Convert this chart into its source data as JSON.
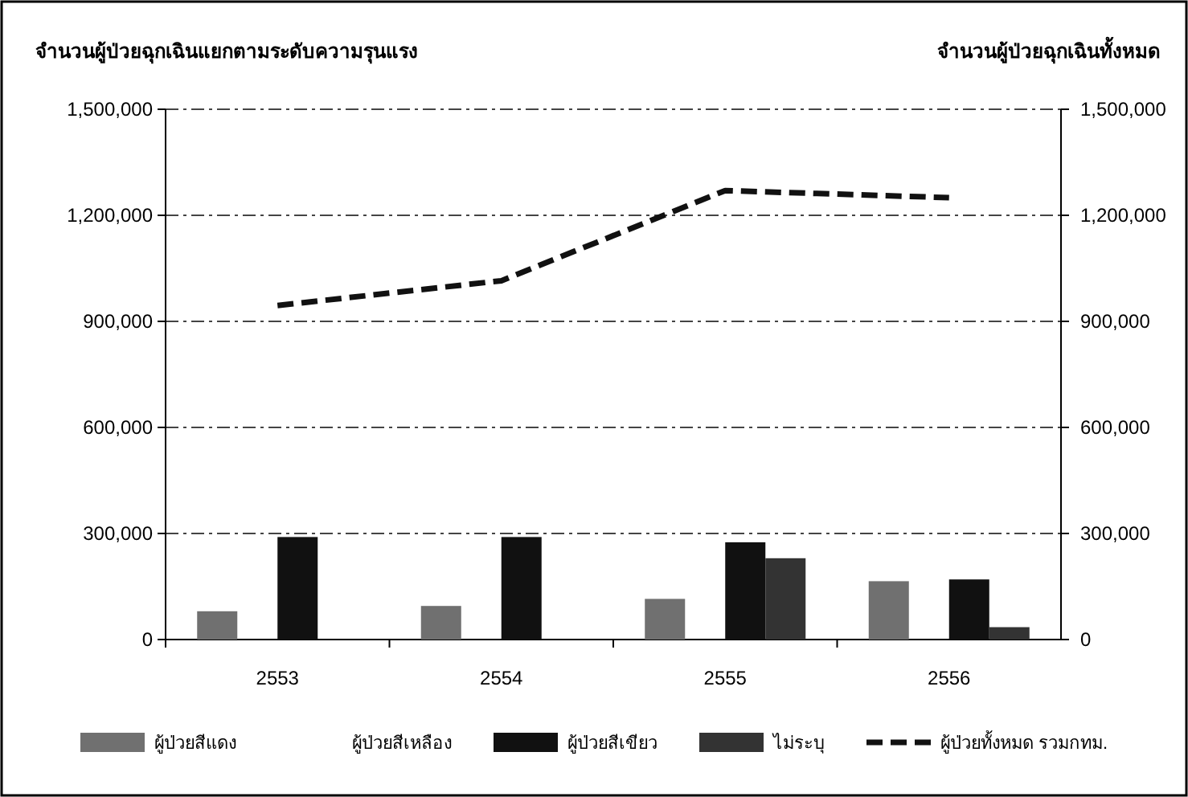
{
  "chart_data": {
    "type": "bar",
    "ylabel": "จำนวนผู้ป่วยฉุกเฉินแยกตามระดับความรุนแรง",
    "y2label": "จำนวนผู้ป่วยฉุกเฉินทั้งหมด",
    "categories": [
      "2553",
      "2554",
      "2555",
      "2556"
    ],
    "series": [
      {
        "name": "ผู้ป่วยสีแดง",
        "color": "#707070",
        "values": [
          80000,
          95000,
          115000,
          165000
        ]
      },
      {
        "name": "ผู้ป่วยสีเหลือง",
        "values": [
          null,
          null,
          null,
          null
        ]
      },
      {
        "name": "ผู้ป่วยสีเขียว",
        "color": "#111111",
        "values": [
          290000,
          290000,
          275000,
          170000
        ]
      },
      {
        "name": "ไม่ระบุ",
        "color": "#333333",
        "values": [
          null,
          null,
          230000,
          35000
        ]
      },
      {
        "name": "ผู้ป่วยทั้งหมด รวมกทม.",
        "type": "line",
        "color": "#111111",
        "line_style": "dashed",
        "values": [
          945000,
          1015000,
          1270000,
          1250000
        ]
      }
    ],
    "ylim": [
      0,
      1500000
    ],
    "yticks": [
      {
        "value": 0,
        "label": "0"
      },
      {
        "value": 300000,
        "label": "300,000"
      },
      {
        "value": 600000,
        "label": "600,000"
      },
      {
        "value": 900000,
        "label": "900,000"
      },
      {
        "value": 1200000,
        "label": "1,200,000"
      },
      {
        "value": 1500000,
        "label": "1,500,000"
      }
    ],
    "y2lim": [
      0,
      1500000
    ],
    "y2ticks": [
      {
        "value": 0,
        "label": "0"
      },
      {
        "value": 300000,
        "label": "300,000"
      },
      {
        "value": 600000,
        "label": "600,000"
      },
      {
        "value": 900000,
        "label": "900,000"
      },
      {
        "value": 1200000,
        "label": "1,200,000"
      },
      {
        "value": 1500000,
        "label": "1,500,000"
      }
    ],
    "grid": "y",
    "legend": "bottom"
  }
}
